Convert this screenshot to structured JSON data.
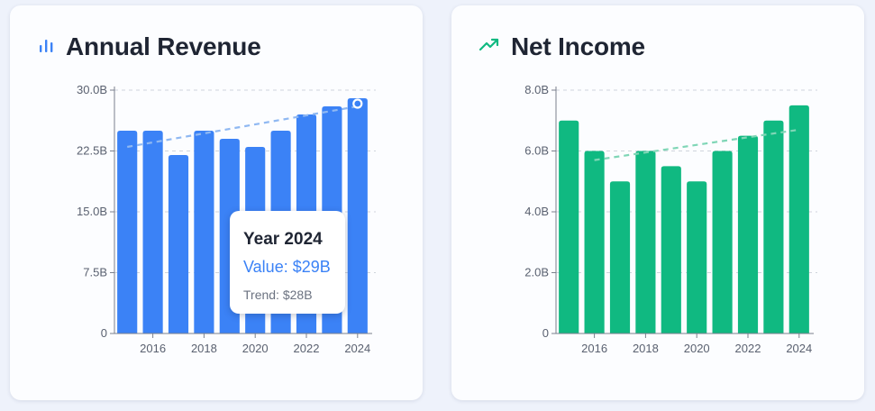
{
  "charts": [
    {
      "id": "revenue",
      "title": "Annual Revenue",
      "icon": "bar-chart-icon",
      "color": "#3b82f6",
      "trend_color": "#8fb8f2",
      "tooltip": {
        "title": "Year 2024",
        "value": "Value: $29B",
        "trend": "Trend: $28B"
      }
    },
    {
      "id": "income",
      "title": "Net Income",
      "icon": "trending-up-icon",
      "color": "#10b981",
      "trend_color": "#7fd6b6"
    }
  ],
  "chart_data": [
    {
      "type": "bar",
      "title": "Annual Revenue",
      "x": [
        2015,
        2016,
        2017,
        2018,
        2019,
        2020,
        2021,
        2022,
        2023,
        2024
      ],
      "values": [
        25,
        25,
        22,
        25,
        24,
        23,
        25,
        27,
        28,
        29
      ],
      "trend": {
        "start": [
          2015,
          23
        ],
        "end": [
          2024,
          28
        ]
      },
      "x_ticks": [
        2016,
        2018,
        2020,
        2022,
        2024
      ],
      "y_ticks": [
        0,
        7.5,
        15,
        22.5,
        30
      ],
      "y_tick_labels": [
        "0",
        "7.5B",
        "15.0B",
        "22.5B",
        "30.0B"
      ],
      "ylim": [
        0,
        30
      ],
      "grid": "horizontal dashed",
      "highlighted": 2024
    },
    {
      "type": "bar",
      "title": "Net Income",
      "x": [
        2015,
        2016,
        2017,
        2018,
        2019,
        2020,
        2021,
        2022,
        2023,
        2024
      ],
      "values": [
        7,
        6,
        5,
        6,
        5.5,
        5,
        6,
        6.5,
        7,
        7.5
      ],
      "trend": {
        "start": [
          2016,
          5.7
        ],
        "end": [
          2024,
          6.7
        ]
      },
      "x_ticks": [
        2016,
        2018,
        2020,
        2022,
        2024
      ],
      "y_ticks": [
        0,
        2,
        4,
        6,
        8
      ],
      "y_tick_labels": [
        "0",
        "2.0B",
        "4.0B",
        "6.0B",
        "8.0B"
      ],
      "ylim": [
        0,
        8
      ],
      "grid": "horizontal dashed"
    }
  ]
}
